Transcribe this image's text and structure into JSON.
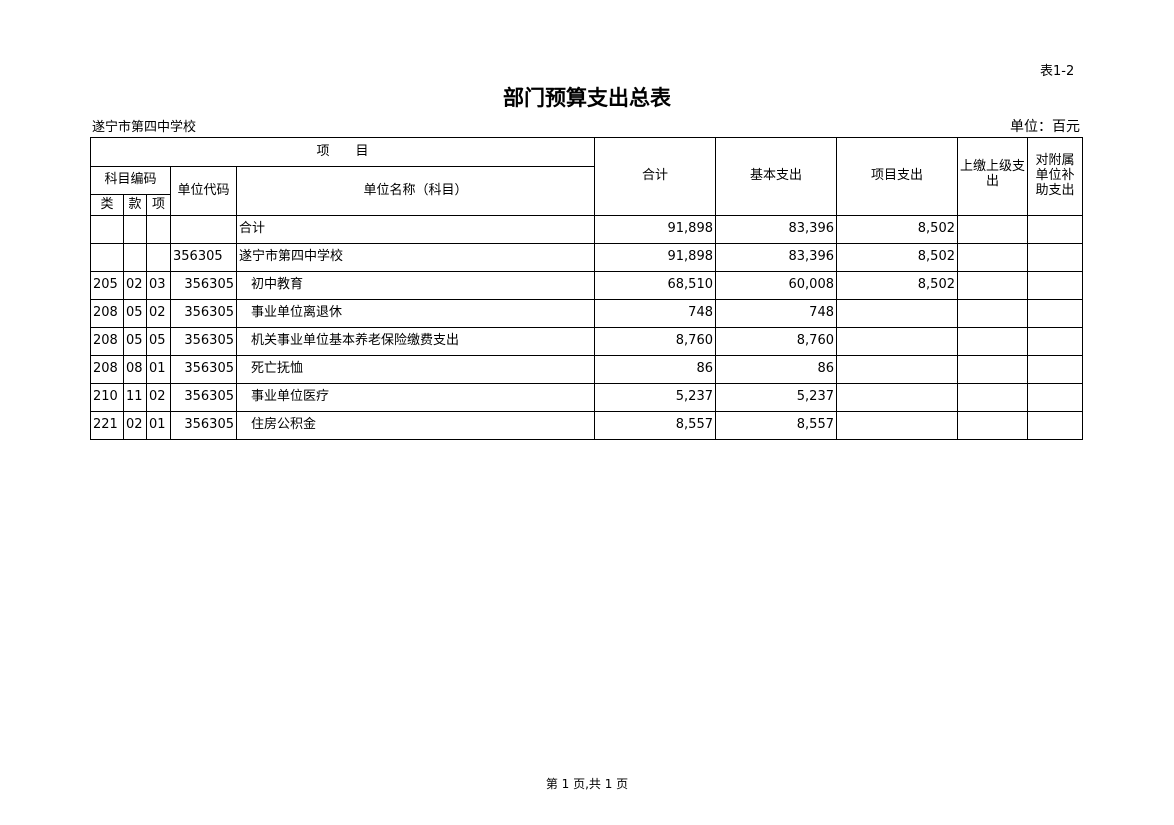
{
  "table_no": "表1-2",
  "title": "部门预算支出总表",
  "org": "遂宁市第四中学校",
  "unit": "单位：百元",
  "headers": {
    "item": "项　　目",
    "subject_code": "科目编码",
    "lei": "类",
    "kuan": "款",
    "xiang": "项",
    "unit_code": "单位代码",
    "unit_name": "单位名称（科目）",
    "total": "合计",
    "basic": "基本支出",
    "project": "项目支出",
    "upper": "上缴上级支出",
    "subsidy": "对附属单位补助支出"
  },
  "rows": [
    {
      "lei": "",
      "kuan": "",
      "xiang": "",
      "code": "",
      "name": "合计",
      "total": "91,898",
      "basic": "83,396",
      "project": "8,502",
      "upper": "",
      "subsidy": ""
    },
    {
      "lei": "",
      "kuan": "",
      "xiang": "",
      "code": "356305",
      "name": "遂宁市第四中学校",
      "total": "91,898",
      "basic": "83,396",
      "project": "8,502",
      "upper": "",
      "subsidy": ""
    },
    {
      "lei": "205",
      "kuan": "02",
      "xiang": "03",
      "code": "356305",
      "name": "初中教育",
      "total": "68,510",
      "basic": "60,008",
      "project": "8,502",
      "upper": "",
      "subsidy": ""
    },
    {
      "lei": "208",
      "kuan": "05",
      "xiang": "02",
      "code": "356305",
      "name": "事业单位离退休",
      "total": "748",
      "basic": "748",
      "project": "",
      "upper": "",
      "subsidy": ""
    },
    {
      "lei": "208",
      "kuan": "05",
      "xiang": "05",
      "code": "356305",
      "name": "机关事业单位基本养老保险缴费支出",
      "total": "8,760",
      "basic": "8,760",
      "project": "",
      "upper": "",
      "subsidy": ""
    },
    {
      "lei": "208",
      "kuan": "08",
      "xiang": "01",
      "code": "356305",
      "name": "死亡抚恤",
      "total": "86",
      "basic": "86",
      "project": "",
      "upper": "",
      "subsidy": ""
    },
    {
      "lei": "210",
      "kuan": "11",
      "xiang": "02",
      "code": "356305",
      "name": "事业单位医疗",
      "total": "5,237",
      "basic": "5,237",
      "project": "",
      "upper": "",
      "subsidy": ""
    },
    {
      "lei": "221",
      "kuan": "02",
      "xiang": "01",
      "code": "356305",
      "name": "住房公积金",
      "total": "8,557",
      "basic": "8,557",
      "project": "",
      "upper": "",
      "subsidy": ""
    }
  ],
  "footer": "第 1 页,共 1 页"
}
